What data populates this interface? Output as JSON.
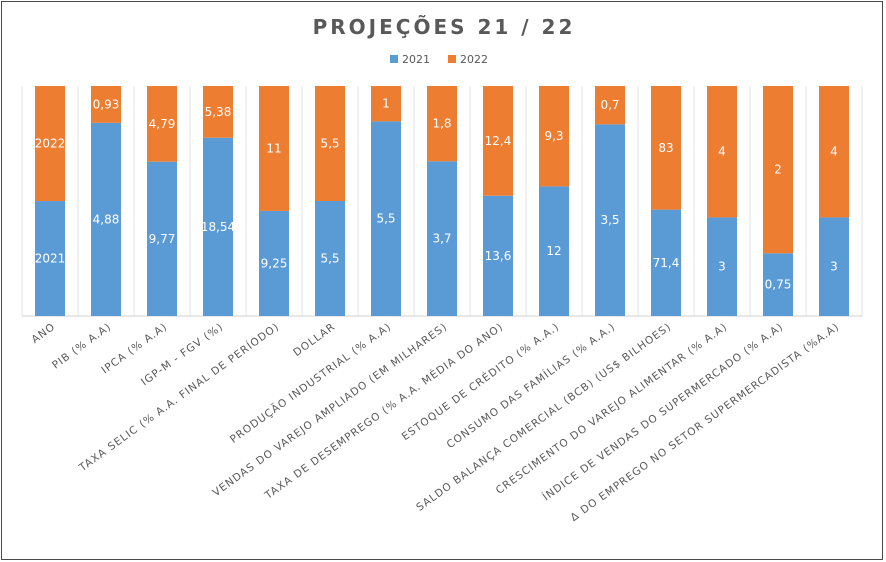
{
  "chart_data": {
    "type": "bar",
    "stacking": "percent",
    "title": "PROJEÇÕES 21 / 22",
    "legend_position": "top",
    "grid": true,
    "categories": [
      "ANO",
      "PIB (% A.A)",
      "IPCA (% A.A)",
      "IGP-M - FGV (%)",
      "TAXA SELIC (% A.A. FINAL DE PERÍODO)",
      "DOLLAR",
      "PRODUÇÃO INDUSTRIAL (% A.A)",
      "VENDAS DO VAREJO AMPLIADO (EM MILHARES)",
      "TAXA DE DESEMPREGO (% A.A. MÉDIA DO ANO)",
      "ESTOQUE DE CRÉDITO (% A.A.)",
      "CONSUMO DAS FAMÍLIAS (% A.A.)",
      "SALDO BALANÇA COMERCIAL (BCB) (US$ BILHOES)",
      "CRESCIMENTO DO VAREJO ALIMENTAR (% A.A)",
      "ÍNDICE DE VENDAS DO SUPERMERCADO (% A.A)",
      "Δ DO EMPREGO NO SETOR SUPERMERCADISTA (%A.A)"
    ],
    "series": [
      {
        "name": "2021",
        "color": "#5B9BD5",
        "values": [
          2021,
          4.88,
          9.77,
          18.54,
          9.25,
          5.5,
          5.5,
          3.7,
          13.6,
          12,
          3.5,
          71.4,
          3,
          0.75,
          3
        ],
        "labels": [
          "2021",
          "4,88",
          "9,77",
          "18,54",
          "9,25",
          "5,5",
          "5,5",
          "3,7",
          "13,6",
          "12",
          "3,5",
          "71,4",
          "3",
          "0,75",
          "3"
        ]
      },
      {
        "name": "2022",
        "color": "#ED7D31",
        "values": [
          2022,
          0.93,
          4.79,
          5.38,
          11,
          5.5,
          1,
          1.8,
          12.4,
          9.3,
          0.7,
          83,
          4,
          2,
          4
        ],
        "labels": [
          "2022",
          "0,93",
          "4,79",
          "5,38",
          "11",
          "5,5",
          "1",
          "1,8",
          "12,4",
          "9,3",
          "0,7",
          "83",
          "4",
          "2",
          "4"
        ]
      }
    ]
  }
}
